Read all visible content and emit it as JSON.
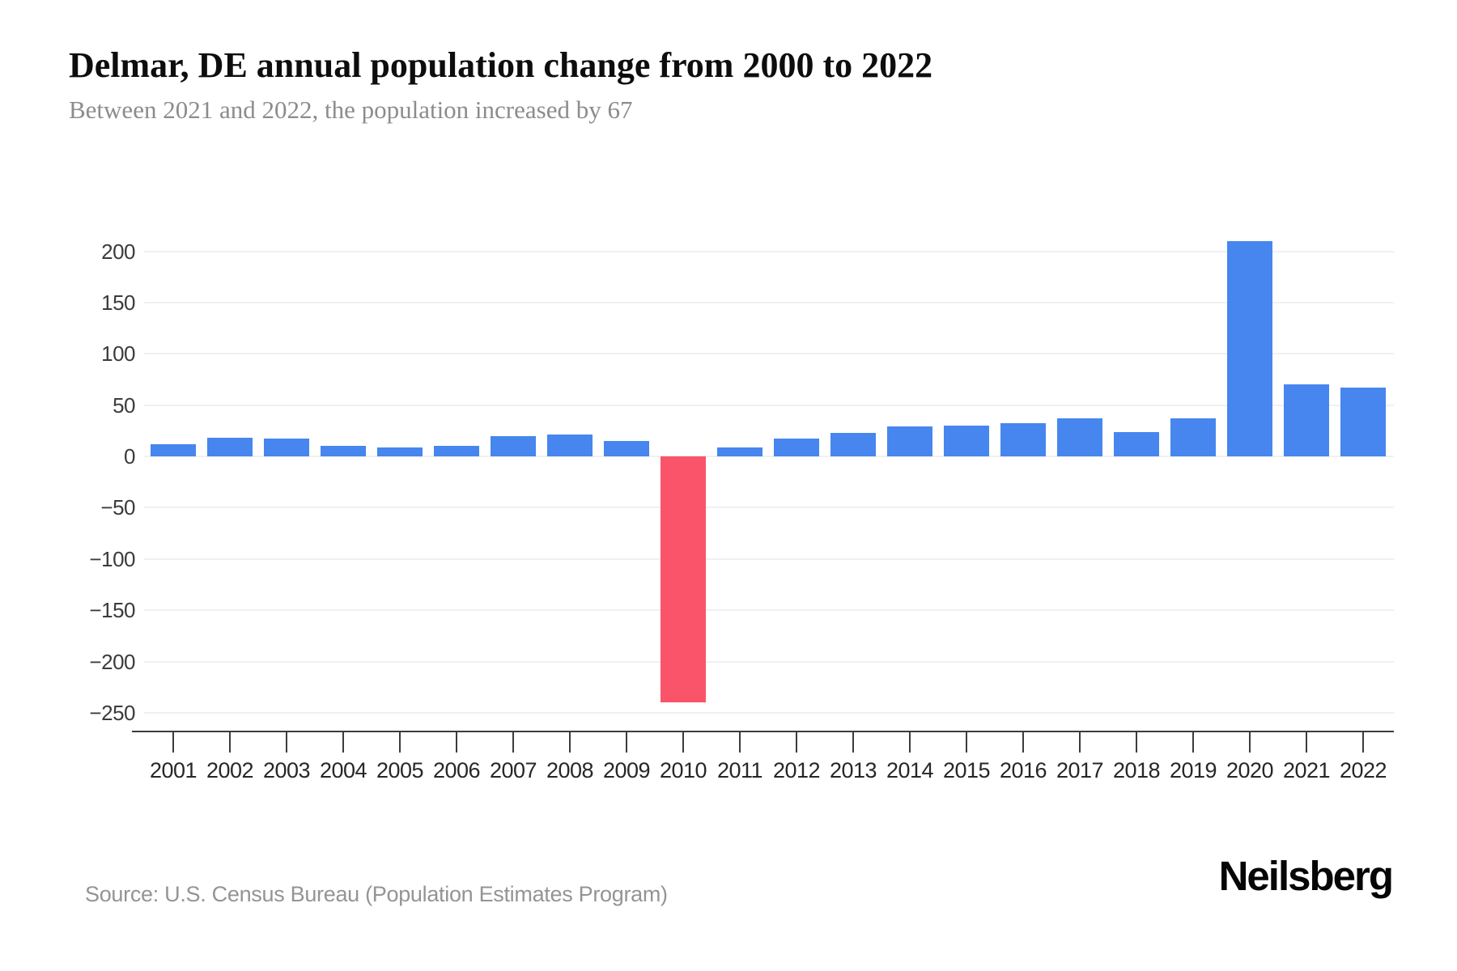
{
  "header": {
    "title": "Delmar, DE annual population change from 2000 to 2022",
    "subtitle": "Between 2021 and 2022, the population increased by 67"
  },
  "chart_data": {
    "type": "bar",
    "title": "Delmar, DE annual population change from 2000 to 2022",
    "subtitle": "Between 2021 and 2022, the population increased by 67",
    "categories": [
      "2001",
      "2002",
      "2003",
      "2004",
      "2005",
      "2006",
      "2007",
      "2008",
      "2009",
      "2010",
      "2011",
      "2012",
      "2013",
      "2014",
      "2015",
      "2016",
      "2017",
      "2018",
      "2019",
      "2020",
      "2021",
      "2022"
    ],
    "values": [
      12,
      18,
      17,
      10,
      9,
      10,
      20,
      21,
      15,
      -240,
      9,
      17,
      23,
      29,
      30,
      32,
      37,
      24,
      37,
      210,
      70,
      67
    ],
    "xlabel": "",
    "ylabel": "",
    "ylim": [
      -250,
      200
    ],
    "ytick_step": 50,
    "yticks": [
      200,
      150,
      100,
      50,
      0,
      -50,
      -100,
      -150,
      -200,
      -250
    ],
    "grid": true,
    "legend": "none",
    "positive_color": "#4686ee",
    "negative_color": "#fa546a",
    "gridline_color": "#f0f0f0",
    "axis_color": "#3c3c3c"
  },
  "footer": {
    "source": "Source: U.S. Census Bureau (Population Estimates Program)",
    "brand": "Neilsberg"
  }
}
